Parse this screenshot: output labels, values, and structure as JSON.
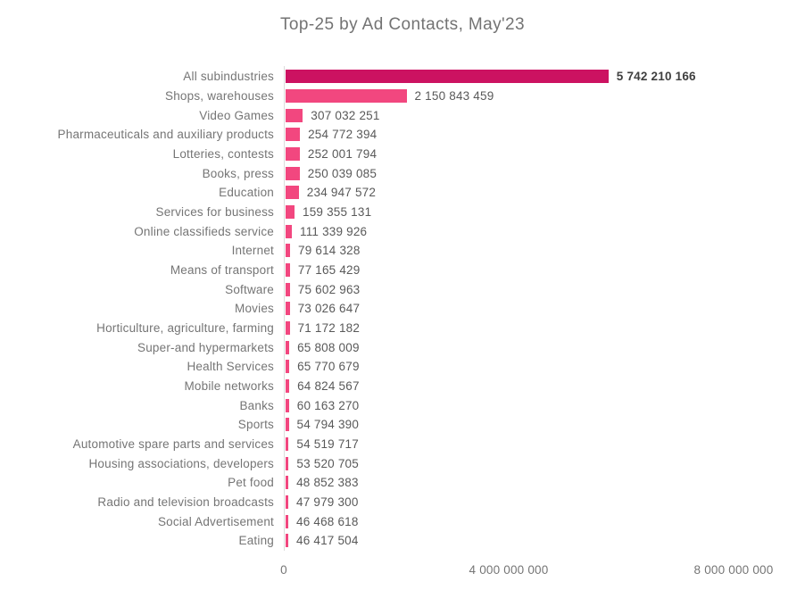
{
  "title": "Top-25 by Ad Contacts, May'23",
  "colors": {
    "highlight_bar": "#cc1261",
    "bar": "#f2477f",
    "title_text": "#737373",
    "category_text": "#757575",
    "value_text": "#595959",
    "value_text_highlight": "#3f3f3f",
    "axis_line": "#dcdcdc",
    "background": "#ffffff"
  },
  "axis": {
    "tick_labels": [
      "0",
      "4 000 000 000",
      "8 000 000 000"
    ],
    "tick_values": [
      0,
      4000000000,
      8000000000
    ]
  },
  "chart_data": {
    "type": "bar",
    "orientation": "horizontal",
    "title": "Top-25 by Ad Contacts, May'23",
    "xlabel": "",
    "ylabel": "",
    "xlim": [
      0,
      8000000000
    ],
    "grid": false,
    "legend": false,
    "highlight_index": 0,
    "categories": [
      "All subindustries",
      "Shops, warehouses",
      "Video Games",
      "Pharmaceuticals and auxiliary products",
      "Lotteries, contests",
      "Books, press",
      "Education",
      "Services for business",
      "Online classifieds service",
      "Internet",
      "Means of transport",
      "Software",
      "Movies",
      "Horticulture, agriculture, farming",
      "Super-and hypermarkets",
      "Health Services",
      "Mobile networks",
      "Banks",
      "Sports",
      "Automotive spare parts and services",
      "Housing associations, developers",
      "Pet food",
      "Radio and television broadcasts",
      "Social Advertisement",
      "Eating"
    ],
    "values": [
      5742210166,
      2150843459,
      307032251,
      254772394,
      252001794,
      250039085,
      234947572,
      159355131,
      111339926,
      79614328,
      77165429,
      75602963,
      73026647,
      71172182,
      65808009,
      65770679,
      64824567,
      60163270,
      54794390,
      54519717,
      53520705,
      48852383,
      47979300,
      46468618,
      46417504
    ],
    "value_labels": [
      "5 742 210 166",
      "2 150 843 459",
      "307 032 251",
      "254 772 394",
      "252 001 794",
      "250 039 085",
      "234 947 572",
      "159 355 131",
      "111 339 926",
      "79 614 328",
      "77 165 429",
      "75 602 963",
      "73 026 647",
      "71 172 182",
      "65 808 009",
      "65 770 679",
      "64 824 567",
      "60 163 270",
      "54 794 390",
      "54 519 717",
      "53 520 705",
      "48 852 383",
      "47 979 300",
      "46 468 618",
      "46 417 504"
    ]
  }
}
